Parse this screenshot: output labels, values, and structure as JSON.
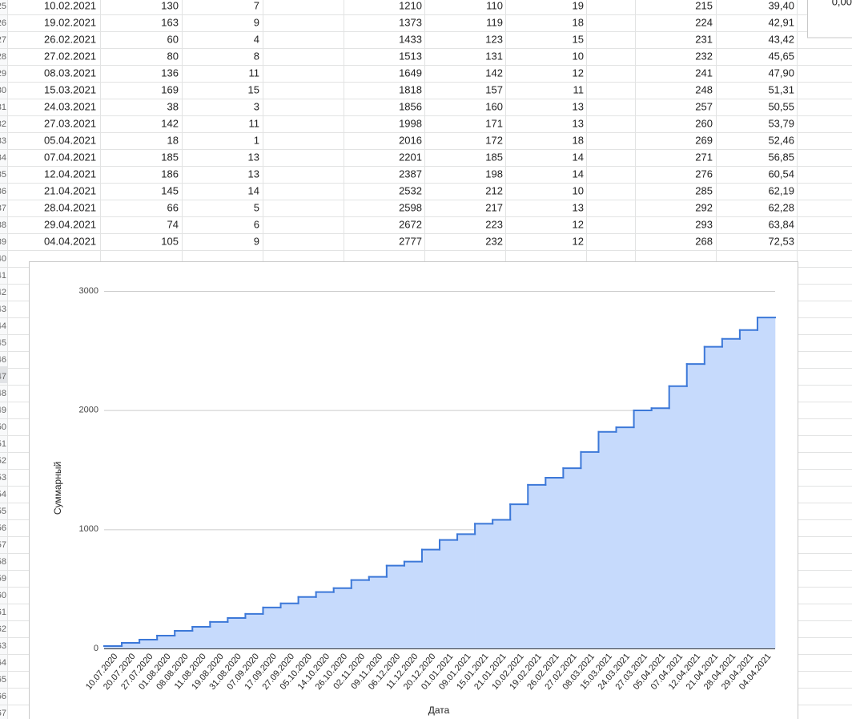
{
  "row_numbers": [
    "25",
    "26",
    "27",
    "28",
    "29",
    "30",
    "31",
    "32",
    "33",
    "34",
    "35",
    "36",
    "37",
    "38",
    "39",
    "40",
    "41",
    "42",
    "43",
    "44",
    "45",
    "46",
    "47",
    "48",
    "49",
    "50",
    "51",
    "52",
    "53",
    "54",
    "55",
    "56",
    "57",
    "58",
    "59",
    "60",
    "61",
    "62",
    "63",
    "64",
    "65",
    "66",
    "67"
  ],
  "side_cell": "0,00",
  "table": {
    "rows": [
      [
        "10.02.2021",
        "130",
        "7",
        "1210",
        "110",
        "19",
        "215",
        "39,40"
      ],
      [
        "19.02.2021",
        "163",
        "9",
        "1373",
        "119",
        "18",
        "224",
        "42,91"
      ],
      [
        "26.02.2021",
        "60",
        "4",
        "1433",
        "123",
        "15",
        "231",
        "43,42"
      ],
      [
        "27.02.2021",
        "80",
        "8",
        "1513",
        "131",
        "10",
        "232",
        "45,65"
      ],
      [
        "08.03.2021",
        "136",
        "11",
        "1649",
        "142",
        "12",
        "241",
        "47,90"
      ],
      [
        "15.03.2021",
        "169",
        "15",
        "1818",
        "157",
        "11",
        "248",
        "51,31"
      ],
      [
        "24.03.2021",
        "38",
        "3",
        "1856",
        "160",
        "13",
        "257",
        "50,55"
      ],
      [
        "27.03.2021",
        "142",
        "11",
        "1998",
        "171",
        "13",
        "260",
        "53,79"
      ],
      [
        "05.04.2021",
        "18",
        "1",
        "2016",
        "172",
        "18",
        "269",
        "52,46"
      ],
      [
        "07.04.2021",
        "185",
        "13",
        "2201",
        "185",
        "14",
        "271",
        "56,85"
      ],
      [
        "12.04.2021",
        "186",
        "13",
        "2387",
        "198",
        "14",
        "276",
        "60,54"
      ],
      [
        "21.04.2021",
        "145",
        "14",
        "2532",
        "212",
        "10",
        "285",
        "62,19"
      ],
      [
        "28.04.2021",
        "66",
        "5",
        "2598",
        "217",
        "13",
        "292",
        "62,28"
      ],
      [
        "29.04.2021",
        "74",
        "6",
        "2672",
        "223",
        "12",
        "293",
        "63,84"
      ],
      [
        "04.04.2021",
        "105",
        "9",
        "2777",
        "232",
        "12",
        "268",
        "72,53"
      ]
    ]
  },
  "chart_data": {
    "type": "stepped-area",
    "x_label": "Дата",
    "y_label": "Суммарный",
    "categories": [
      "10.07.2020",
      "20.07.2020",
      "27.07.2020",
      "01.08.2020",
      "08.08.2020",
      "11.08.2020",
      "19.08.2020",
      "31.08.2020",
      "07.09.2020",
      "17.09.2020",
      "27.09.2020",
      "05.10.2020",
      "14.10.2020",
      "26.10.2020",
      "02.11.2020",
      "09.11.2020",
      "06.12.2020",
      "11.12.2020",
      "20.12.2020",
      "01.01.2021",
      "09.01.2021",
      "15.01.2021",
      "21.01.2021",
      "10.02.2021",
      "19.02.2021",
      "26.02.2021",
      "27.02.2021",
      "08.03.2021",
      "15.03.2021",
      "24.03.2021",
      "27.03.2021",
      "05.04.2021",
      "07.04.2021",
      "12.04.2021",
      "21.04.2021",
      "28.04.2021",
      "29.04.2021",
      "04.04.2021"
    ],
    "values": [
      20,
      47,
      74,
      108,
      148,
      182,
      223,
      256,
      290,
      344,
      378,
      432,
      473,
      506,
      574,
      601,
      695,
      729,
      830,
      911,
      959,
      1047,
      1080,
      1210,
      1373,
      1433,
      1513,
      1649,
      1818,
      1856,
      1998,
      2016,
      2201,
      2387,
      2532,
      2598,
      2672,
      2777
    ],
    "color": "#3c78d8",
    "fill_color": "#c6dafc",
    "ylim": [
      0,
      3000
    ],
    "yticks": [
      0,
      1000,
      2000,
      3000
    ],
    "grid": true
  }
}
